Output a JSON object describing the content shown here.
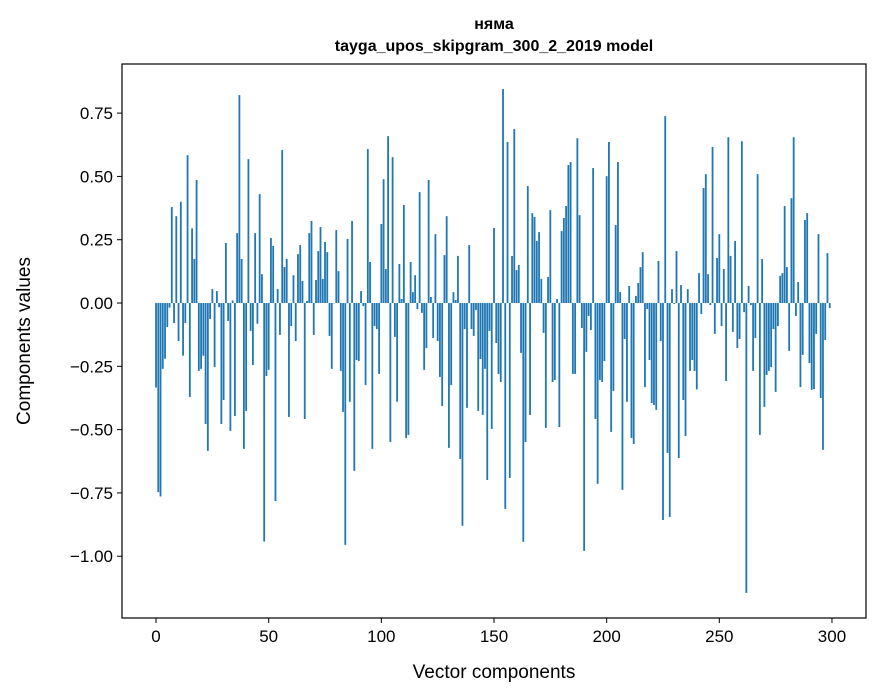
{
  "chart_data": {
    "type": "bar",
    "title": "няма",
    "subtitle": "tayga_upos_skipgram_300_2_2019 model",
    "xlabel": "Vector components",
    "ylabel": "Components values",
    "xlim": [
      -15.1,
      315.1
    ],
    "ylim": [
      -1.244,
      0.944
    ],
    "grid": false,
    "bar_color": "#1f77b4",
    "x_ticks": [
      0,
      50,
      100,
      150,
      200,
      250,
      300
    ],
    "x_tick_labels": [
      "0",
      "50",
      "100",
      "150",
      "200",
      "250",
      "300"
    ],
    "y_ticks": [
      0.75,
      0.5,
      0.25,
      0,
      -0.25,
      -0.5,
      -0.75,
      -1.0
    ],
    "y_tick_labels": [
      "0.75",
      "0.50",
      "0.25",
      "0.00",
      "−0.25",
      "−0.50",
      "−0.75",
      "−1.00"
    ],
    "values": [
      -0.334,
      -0.747,
      -0.764,
      -0.26,
      -0.22,
      -0.095,
      -0.018,
      0.379,
      -0.079,
      0.343,
      -0.15,
      0.4,
      -0.208,
      -0.079,
      0.584,
      -0.371,
      0.295,
      0.174,
      0.486,
      -0.268,
      -0.26,
      -0.208,
      -0.478,
      -0.584,
      -0.063,
      0.055,
      -0.253,
      0.047,
      -0.016,
      -0.478,
      -0.383,
      0.237,
      -0.071,
      -0.505,
      0.01,
      -0.446,
      0.276,
      0.821,
      0.174,
      -0.576,
      -0.426,
      0.568,
      -0.11,
      -0.245,
      0.276,
      -0.082,
      0.43,
      0.114,
      -0.942,
      -0.288,
      -0.264,
      0.257,
      0.225,
      -0.782,
      0.055,
      -0.126,
      0.604,
      0.142,
      0.174,
      -0.45,
      -0.091,
      0.11,
      -0.15,
      0.193,
      0.229,
      0.087,
      -0.458,
      0.008,
      0.276,
      0.324,
      -0.126,
      0.091,
      0.205,
      0.3,
      0.095,
      0.241,
      0.201,
      -0.13,
      -0.26,
      0.0,
      0.288,
      0.126,
      -0.268,
      -0.43,
      -0.955,
      0.253,
      -0.39,
      0.324,
      -0.663,
      -0.225,
      -0.229,
      0.047,
      -0.012,
      -0.324,
      0.608,
      0.162,
      -0.576,
      -0.091,
      -0.103,
      -0.28,
      0.312,
      0.489,
      0.134,
      0.659,
      -0.549,
      0.576,
      -0.134,
      -0.39,
      0.154,
      0.016,
      0.387,
      -0.533,
      -0.521,
      0.162,
      0.043,
      0.11,
      -0.024,
      0.438,
      -0.039,
      -0.264,
      -0.178,
      0.486,
      0.024,
      -0.138,
      0.272,
      -0.15,
      -0.292,
      -0.407,
      0.189,
      0.343,
      -0.572,
      -0.324,
      0.043,
      0.012,
      0.186,
      -0.616,
      -0.88,
      -0.103,
      -0.414,
      0.229,
      -0.103,
      -0.13,
      -0.028,
      -0.426,
      -0.221,
      -0.442,
      -0.26,
      -0.699,
      -0.11,
      -0.497,
      0.296,
      -0.158,
      -0.28,
      -0.312,
      0.845,
      -0.813,
      0.636,
      -0.691,
      0.186,
      0.687,
      0.13,
      0.15,
      -0.197,
      -0.943,
      -0.549,
      0.462,
      -0.442,
      0.355,
      0.34,
      0.245,
      0.28,
      0.095,
      -0.118,
      -0.493,
      0.103,
      0.367,
      -0.312,
      -0.304,
      0.016,
      -0.49,
      0.284,
      0.336,
      0.383,
      0.545,
      0.557,
      -0.28,
      -0.28,
      0.651,
      0.347,
      -0.099,
      -0.979,
      -0.193,
      -0.051,
      -0.107,
      0.533,
      -0.458,
      -0.714,
      -0.304,
      -0.312,
      -0.229,
      0.501,
      0.636,
      -0.509,
      -0.347,
      0.308,
      0.557,
      0.043,
      -0.738,
      -0.142,
      -0.39,
      0.067,
      -0.533,
      -0.557,
      0.028,
      0.079,
      0.142,
      0.201,
      -0.332,
      -0.024,
      -0.225,
      -0.395,
      -0.403,
      -0.422,
      0.166,
      -0.15,
      -0.857,
      0.738,
      -0.592,
      -0.845,
      0.055,
      -0.004,
      0.205,
      -0.612,
      0.071,
      -0.383,
      -0.525,
      0.055,
      -0.268,
      -0.225,
      -0.268,
      -0.341,
      0.118,
      -0.043,
      0.454,
      0.509,
      0.114,
      -0.008,
      0.616,
      -0.122,
      0.178,
      0.272,
      -0.091,
      0.134,
      -0.308,
      0.655,
      0.186,
      -0.114,
      0.245,
      -0.178,
      -0.142,
      0.639,
      -0.036,
      -1.145,
      0.067,
      -0.008,
      -0.268,
      -0.138,
      0.509,
      -0.521,
      0.174,
      -0.41,
      -0.284,
      -0.268,
      -0.253,
      -0.103,
      -0.351,
      -0.091,
      0.107,
      0.118,
      0.383,
      0.142,
      -0.189,
      0.414,
      0.655,
      -0.051,
      0.083,
      -0.332,
      -0.205,
      0.328,
      0.355,
      -0.237,
      -0.343,
      -0.34,
      -0.122,
      0.272,
      -0.375,
      -0.58,
      -0.146,
      0.197,
      -0.02
    ]
  }
}
